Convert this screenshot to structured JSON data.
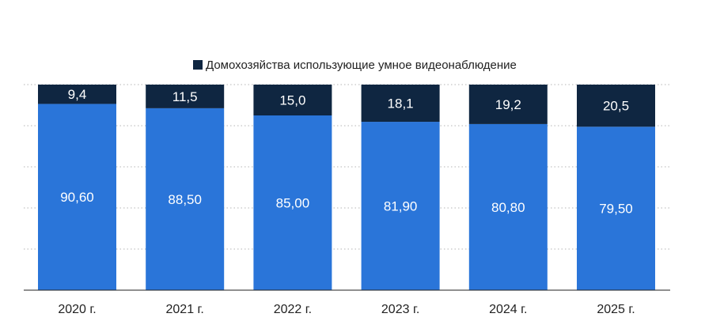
{
  "chart_data": {
    "type": "bar",
    "stacked": true,
    "orientation": "vertical",
    "categories": [
      "2020 г.",
      "2021 г.",
      "2022 г.",
      "2023 г.",
      "2024 г.",
      "2025 г."
    ],
    "series": [
      {
        "values": [
          90.6,
          88.5,
          85.0,
          81.9,
          80.8,
          79.5
        ],
        "labels": [
          "90,60",
          "88,50",
          "85,00",
          "81,90",
          "80,80",
          "79,50"
        ],
        "color": "#2a75d9"
      },
      {
        "name": "Домохозяйства использующие умное видеонаблюдение",
        "values": [
          9.4,
          11.5,
          15.0,
          18.1,
          19.2,
          20.5
        ],
        "labels": [
          "9,4",
          "11,5",
          "15,0",
          "18,1",
          "19,2",
          "20,5"
        ],
        "color": "#0f2641"
      }
    ],
    "ylim": [
      0,
      100
    ],
    "grid": true,
    "legend": "top-center",
    "title": "",
    "xlabel": "",
    "ylabel": ""
  }
}
